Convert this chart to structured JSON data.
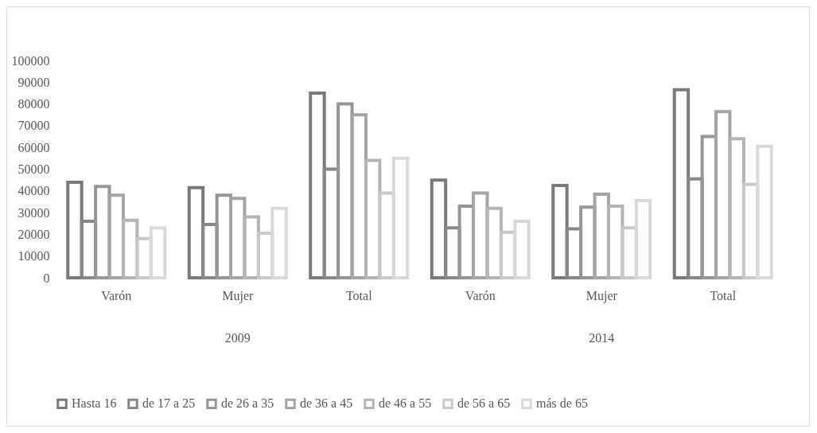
{
  "chart_data": {
    "type": "bar",
    "categories": [
      "Varón",
      "Mujer",
      "Total",
      "Varón",
      "Mujer",
      "Total"
    ],
    "annotations": [
      "2009",
      "2014"
    ],
    "series": [
      {
        "name": "Hasta 16",
        "color": "#7a7a7a",
        "values": [
          44000,
          41500,
          85000,
          45000,
          42500,
          86500
        ]
      },
      {
        "name": "de 17 a 25",
        "color": "#878787",
        "values": [
          26000,
          24500,
          50000,
          23000,
          22500,
          45500
        ]
      },
      {
        "name": "de 26 a 35",
        "color": "#969696",
        "values": [
          42000,
          38000,
          80000,
          33000,
          32500,
          65000
        ]
      },
      {
        "name": "de 36 a 45",
        "color": "#a5a5a5",
        "values": [
          38000,
          36500,
          75000,
          39000,
          38500,
          76500
        ]
      },
      {
        "name": "de 46 a 55",
        "color": "#b4b4b4",
        "values": [
          26500,
          28000,
          54000,
          32000,
          33000,
          64000
        ]
      },
      {
        "name": "de 56 a 65",
        "color": "#c8c8c8",
        "values": [
          18000,
          20500,
          39000,
          21000,
          23000,
          43000
        ]
      },
      {
        "name": "más de 65",
        "color": "#d9d9d9",
        "values": [
          23000,
          32000,
          55000,
          26000,
          35500,
          60500
        ]
      }
    ],
    "ylim": [
      0,
      100000
    ],
    "yticks": [
      0,
      10000,
      20000,
      30000,
      40000,
      50000,
      60000,
      70000,
      80000,
      90000,
      100000
    ],
    "grid": false,
    "legend": "bottom"
  }
}
